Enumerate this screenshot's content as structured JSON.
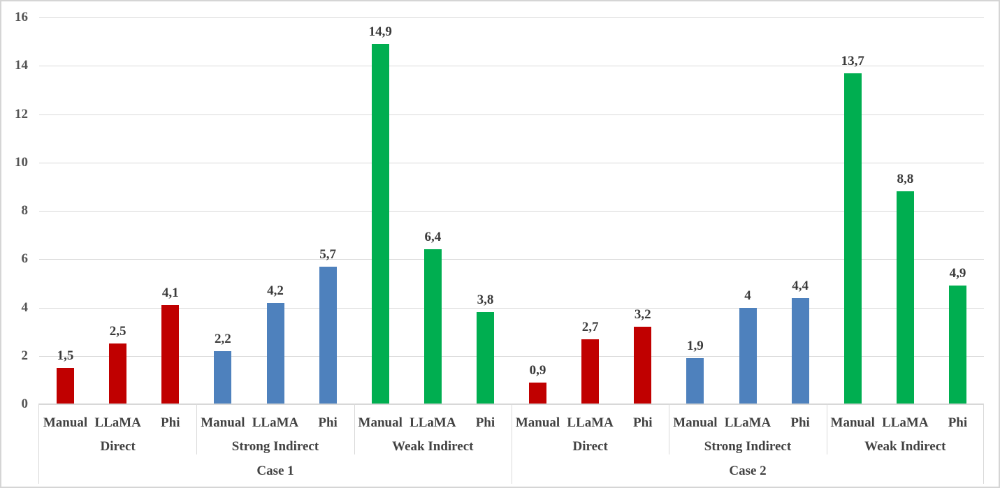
{
  "chart_data": {
    "type": "bar",
    "title": "",
    "xlabel": "",
    "ylabel": "",
    "ylim": [
      0,
      16
    ],
    "yticks": [
      "0",
      "2",
      "4",
      "6",
      "8",
      "10",
      "12",
      "14",
      "16"
    ],
    "ytick_values": [
      0,
      2,
      4,
      6,
      8,
      10,
      12,
      14,
      16
    ],
    "grid": true,
    "legend_position": "none",
    "decimal_separator": ",",
    "bar_labels": [
      "Manual",
      "LLaMA",
      "Phi"
    ],
    "colors": {
      "Direct": "#c00000",
      "Strong Indirect": "#4e81bd",
      "Weak Indirect": "#00ae50"
    },
    "gridline_color": "#d9d9d9",
    "cases": [
      {
        "label": "Case 1",
        "categories": [
          {
            "label": "Direct",
            "color": "#c00000",
            "bars": [
              {
                "label": "Manual",
                "value": 1.5,
                "display": "1,5"
              },
              {
                "label": "LLaMA",
                "value": 2.5,
                "display": "2,5"
              },
              {
                "label": "Phi",
                "value": 4.1,
                "display": "4,1"
              }
            ]
          },
          {
            "label": "Strong Indirect",
            "color": "#4e81bd",
            "bars": [
              {
                "label": "Manual",
                "value": 2.2,
                "display": "2,2"
              },
              {
                "label": "LLaMA",
                "value": 4.2,
                "display": "4,2"
              },
              {
                "label": "Phi",
                "value": 5.7,
                "display": "5,7"
              }
            ]
          },
          {
            "label": "Weak Indirect",
            "color": "#00ae50",
            "bars": [
              {
                "label": "Manual",
                "value": 14.9,
                "display": "14,9"
              },
              {
                "label": "LLaMA",
                "value": 6.4,
                "display": "6,4"
              },
              {
                "label": "Phi",
                "value": 3.8,
                "display": "3,8"
              }
            ]
          }
        ]
      },
      {
        "label": "Case 2",
        "categories": [
          {
            "label": "Direct",
            "color": "#c00000",
            "bars": [
              {
                "label": "Manual",
                "value": 0.9,
                "display": "0,9"
              },
              {
                "label": "LLaMA",
                "value": 2.7,
                "display": "2,7"
              },
              {
                "label": "Phi",
                "value": 3.2,
                "display": "3,2"
              }
            ]
          },
          {
            "label": "Strong Indirect",
            "color": "#4e81bd",
            "bars": [
              {
                "label": "Manual",
                "value": 1.9,
                "display": "1,9"
              },
              {
                "label": "LLaMA",
                "value": 4,
                "display": "4"
              },
              {
                "label": "Phi",
                "value": 4.4,
                "display": "4,4"
              }
            ]
          },
          {
            "label": "Weak Indirect",
            "color": "#00ae50",
            "bars": [
              {
                "label": "Manual",
                "value": 13.7,
                "display": "13,7"
              },
              {
                "label": "LLaMA",
                "value": 8.8,
                "display": "8,8"
              },
              {
                "label": "Phi",
                "value": 4.9,
                "display": "4,9"
              }
            ]
          }
        ]
      }
    ]
  }
}
